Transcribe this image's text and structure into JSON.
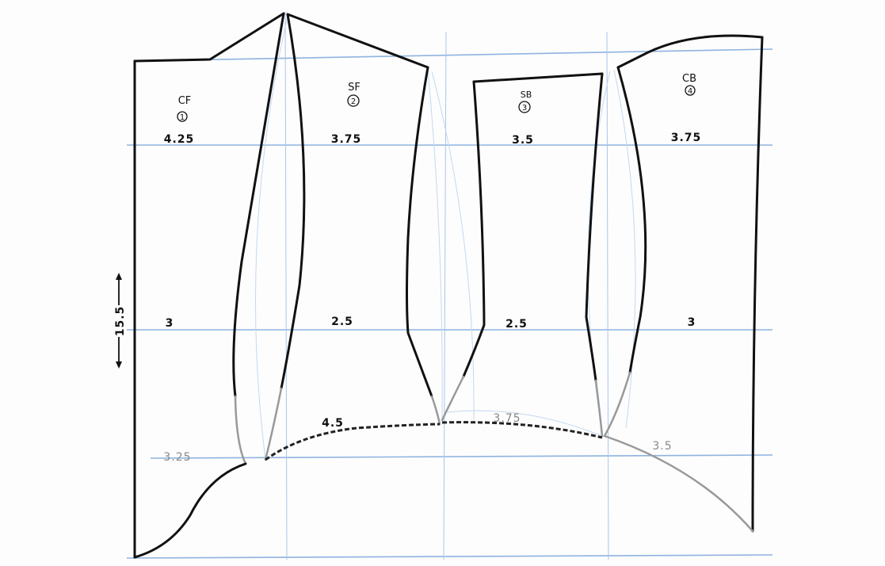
{
  "pieces": [
    {
      "code": "CF",
      "number": "1",
      "top_width": "4.25",
      "mid_width": "3",
      "bottom_width": "3.25"
    },
    {
      "code": "SF",
      "number": "2",
      "top_width": "3.75",
      "mid_width": "2.5",
      "bottom_width": "4.5"
    },
    {
      "code": "SB",
      "number": "3",
      "top_width": "3.5",
      "mid_width": "2.5",
      "bottom_width": "3.75"
    },
    {
      "code": "CB",
      "number": "4",
      "top_width": "3.75",
      "mid_width": "3",
      "bottom_width": "3.5"
    }
  ],
  "length_label": "15.5",
  "colors": {
    "ink": "#111111",
    "guide_lines": "#8fb3e0",
    "pencil": "#999999"
  }
}
